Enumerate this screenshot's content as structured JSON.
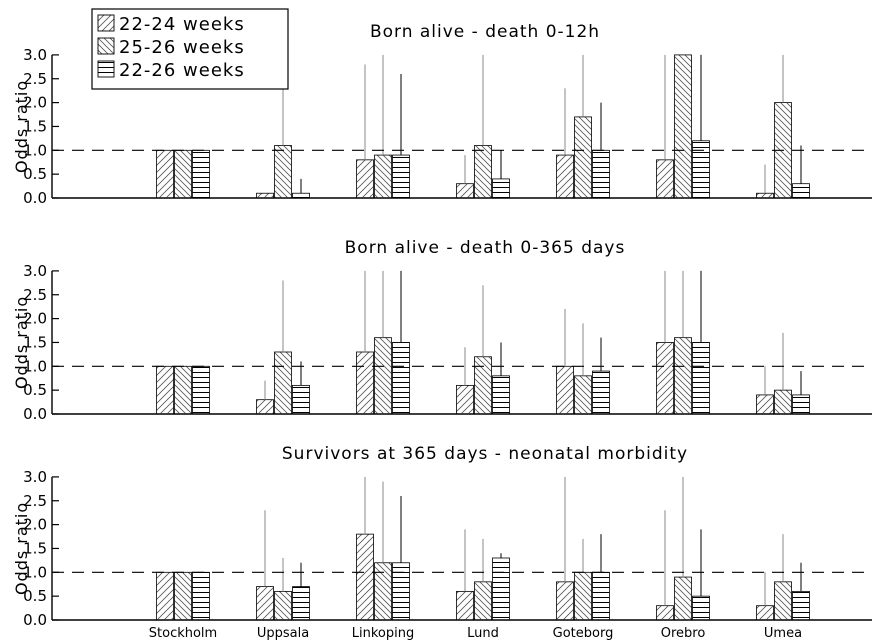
{
  "chart_data": {
    "type": "bar",
    "categories": [
      "Stockholm",
      "Uppsala",
      "Linkoping",
      "Lund",
      "Goteborg",
      "Orebro",
      "Umea"
    ],
    "series_names": [
      "22-24 weeks",
      "25-26 weeks",
      "22-26 weeks"
    ],
    "reference_line": 1.0,
    "ylim": [
      0,
      3.0
    ],
    "yticks": [
      "0.0",
      "0.5",
      "1.0",
      "1.5",
      "2.0",
      "2.5",
      "3.0"
    ],
    "ylabel": "Odds ratio",
    "legend_position": "top-left",
    "panels": [
      {
        "title": "Born alive - death 0-12h",
        "values": [
          [
            1.0,
            1.0,
            1.0
          ],
          [
            0.1,
            1.1,
            0.1
          ],
          [
            0.8,
            0.9,
            0.9
          ],
          [
            0.3,
            1.1,
            0.4
          ],
          [
            0.9,
            1.7,
            1.0
          ],
          [
            0.8,
            3.0,
            1.2
          ],
          [
            0.1,
            2.0,
            0.3
          ]
        ],
        "ci_upper": [
          [
            null,
            null,
            null
          ],
          [
            null,
            3.0,
            0.4
          ],
          [
            2.8,
            3.0,
            2.6
          ],
          [
            0.9,
            3.0,
            1.0
          ],
          [
            2.3,
            3.0,
            2.0
          ],
          [
            3.0,
            3.0,
            3.0
          ],
          [
            0.7,
            3.0,
            1.1
          ]
        ]
      },
      {
        "title": "Born alive - death 0-365 days",
        "values": [
          [
            1.0,
            1.0,
            1.0
          ],
          [
            0.3,
            1.3,
            0.6
          ],
          [
            1.3,
            1.6,
            1.5
          ],
          [
            0.6,
            1.2,
            0.8
          ],
          [
            1.0,
            0.8,
            0.9
          ],
          [
            1.5,
            1.6,
            1.5
          ],
          [
            0.4,
            0.5,
            0.4
          ]
        ],
        "ci_upper": [
          [
            null,
            null,
            null
          ],
          [
            0.7,
            2.8,
            1.1
          ],
          [
            3.0,
            3.0,
            3.0
          ],
          [
            1.4,
            2.7,
            1.5
          ],
          [
            2.2,
            1.9,
            1.6
          ],
          [
            3.0,
            3.0,
            3.0
          ],
          [
            1.0,
            1.7,
            0.9
          ]
        ]
      },
      {
        "title": "Survivors at 365 days - neonatal morbidity",
        "values": [
          [
            1.0,
            1.0,
            1.0
          ],
          [
            0.7,
            0.6,
            0.7
          ],
          [
            1.8,
            1.2,
            1.2
          ],
          [
            0.6,
            0.8,
            1.3
          ],
          [
            0.8,
            1.0,
            1.0
          ],
          [
            0.3,
            0.9,
            0.5
          ],
          [
            0.3,
            0.8,
            0.6
          ]
        ],
        "ci_upper": [
          [
            null,
            null,
            null
          ],
          [
            2.3,
            1.3,
            1.2
          ],
          [
            3.0,
            2.9,
            2.6
          ],
          [
            1.9,
            1.7,
            1.4
          ],
          [
            3.0,
            1.7,
            1.8
          ],
          [
            2.3,
            3.0,
            1.9
          ],
          [
            1.0,
            1.8,
            1.2
          ]
        ]
      }
    ]
  }
}
